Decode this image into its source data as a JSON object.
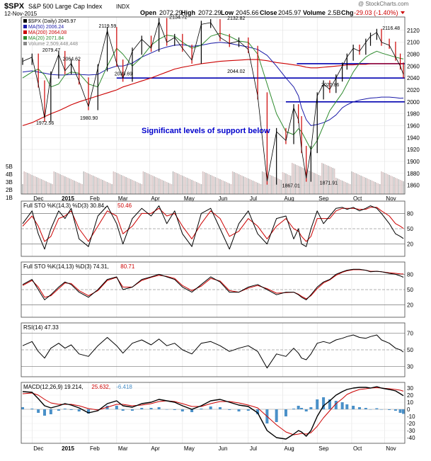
{
  "header": {
    "symbol": "$SPX",
    "name": "S&P 500 Large Cap Index",
    "exchange": "INDX",
    "date": "12-Nov-2015",
    "open_label": "Open",
    "open": "2072.29",
    "high_label": "High",
    "high": "2072.29",
    "low_label": "Low",
    "low": "2045.66",
    "close_label": "Close",
    "close": "2045.97",
    "volume_label": "Volume",
    "volume": "2.5B",
    "chg_label": "Chg",
    "chg": "-29.03 (-1.40%)",
    "watermark": "@ StockCharts.com"
  },
  "colors": {
    "price_up": "#000000",
    "price_down": "#cc0000",
    "ma50": "#1a1aa8",
    "ma200": "#cc0000",
    "ma20": "#2e8b2e",
    "volume_bar": "#d9c6c6",
    "support_line": "#0000b0",
    "annotation": "#0000cc",
    "osc_k": "#000000",
    "osc_d": "#cc0000",
    "macd_hist": "#4a90c8"
  },
  "chart_data": [
    {
      "type": "line",
      "title": "$SPX (Daily) 2045.97",
      "legend": [
        {
          "name": "$SPX (Daily) 2045.97",
          "color": "#000000"
        },
        {
          "name": "MA(50) 2006.24",
          "color": "#1a1aa8"
        },
        {
          "name": "MA(200) 2064.08",
          "color": "#cc0000"
        },
        {
          "name": "MA(20) 2071.84",
          "color": "#2e8b2e"
        },
        {
          "name": "Volume 2,509,448,448",
          "color": "#888888"
        }
      ],
      "x_tick_labels": [
        "Dec",
        "2015",
        "Feb",
        "Mar",
        "Apr",
        "May",
        "Jun",
        "Jul",
        "Aug",
        "Sep",
        "Oct",
        "Nov"
      ],
      "y_ticks": [
        1860,
        1880,
        1900,
        1920,
        1940,
        1960,
        1980,
        2000,
        2020,
        2040,
        2060,
        2080,
        2100,
        2120
      ],
      "ylim": [
        1850,
        2140
      ],
      "volume_ticks": [
        "5B",
        "4B",
        "3B",
        "2B",
        "1B"
      ],
      "annotation": "Significant levels of support below",
      "support_levels": [
        2064,
        2040,
        2000
      ],
      "x": [
        0,
        6,
        10,
        14,
        18,
        23,
        27,
        31,
        36,
        42,
        48,
        54,
        60,
        64,
        70,
        76,
        82,
        87,
        92,
        97,
        102,
        108,
        114,
        120,
        126,
        132,
        138,
        144,
        150,
        156,
        162,
        168,
        173,
        176,
        178,
        181,
        184,
        188,
        192,
        196,
        200,
        204,
        207,
        211,
        215,
        219,
        222,
        226,
        229,
        234,
        238,
        241,
        243
      ],
      "close": [
        2068,
        2075,
        2030,
        1972.56,
        2045,
        2079.47,
        2052,
        2064.62,
        2035,
        1992,
        2057,
        2119.59,
        2065,
        2039.69,
        2085,
        2105,
        2090,
        2134.72,
        2100,
        2108,
        2090,
        2070,
        2130,
        2132.82,
        2108,
        2098,
        2102,
        2088,
        2010,
        1867.01,
        1950,
        1935,
        1990,
        1970,
        1920,
        1871.91,
        1920,
        2010,
        2030,
        2020.86,
        2040,
        2060,
        2075,
        2090,
        2085,
        2100,
        2110,
        2116.48,
        2100,
        2095,
        2075,
        2060,
        2045.97
      ],
      "ma50": [
        2050,
        2052,
        2050,
        2048,
        2046,
        2045,
        2045,
        2046,
        2046,
        2045,
        2046,
        2055,
        2060,
        2060,
        2065,
        2075,
        2082,
        2088,
        2092,
        2095,
        2096,
        2093,
        2095,
        2098,
        2100,
        2098,
        2095,
        2092,
        2088,
        2078,
        2060,
        2040,
        2025,
        2010,
        1990,
        1970,
        1960,
        1962,
        1965,
        1970,
        1978,
        1990,
        1995,
        2000,
        2003,
        2005,
        2006.24,
        2007,
        2008,
        2008,
        2007,
        2006,
        2006.24
      ],
      "ma200": [
        1960,
        1965,
        1970,
        1975,
        1980,
        1985,
        1990,
        1995,
        2000,
        2005,
        2010,
        2015,
        2020,
        2025,
        2030,
        2035,
        2040,
        2045,
        2050,
        2055,
        2058,
        2061,
        2064,
        2066,
        2068,
        2069,
        2070,
        2071,
        2071,
        2069,
        2066,
        2064,
        2062,
        2061,
        2060,
        2058,
        2057,
        2057,
        2058,
        2059,
        2060,
        2061,
        2062,
        2062,
        2063,
        2063,
        2064,
        2064,
        2064,
        2064,
        2064,
        2064,
        2064.08
      ],
      "ma20": [
        2040,
        2050,
        2055,
        2045,
        2025,
        2030,
        2045,
        2050,
        2048,
        2030,
        2025,
        2060,
        2090,
        2080,
        2060,
        2075,
        2095,
        2105,
        2112,
        2110,
        2100,
        2090,
        2095,
        2110,
        2115,
        2110,
        2102,
        2100,
        2080,
        2030,
        1980,
        1950,
        1945,
        1955,
        1950,
        1935,
        1920,
        1935,
        1960,
        1985,
        2000,
        2015,
        2030,
        2050,
        2065,
        2075,
        2080,
        2085,
        2082,
        2078,
        2075,
        2073,
        2071.84
      ],
      "point_labels": [
        {
          "x": 18,
          "y": 2079.47,
          "text": "2079.47"
        },
        {
          "x": 31,
          "y": 2064.62,
          "text": "2064.62"
        },
        {
          "x": 14,
          "y": 1972.56,
          "text": "1972.56"
        },
        {
          "x": 42,
          "y": 1980.9,
          "text": "1980.90"
        },
        {
          "x": 54,
          "y": 2119.59,
          "text": "2119.59"
        },
        {
          "x": 64,
          "y": 2039.69,
          "text": "2039.69"
        },
        {
          "x": 99,
          "y": 2134.72,
          "text": "2134.72"
        },
        {
          "x": 136,
          "y": 2132.82,
          "text": "2132.82"
        },
        {
          "x": 136,
          "y": 2044.02,
          "text": "2044.02"
        },
        {
          "x": 196,
          "y": 2020.86,
          "text": "2020.86"
        },
        {
          "x": 171,
          "y": 1867.01,
          "text": "1867.01"
        },
        {
          "x": 195,
          "y": 1871.91,
          "text": "1871.91"
        },
        {
          "x": 235,
          "y": 2116.48,
          "text": "2116.48"
        }
      ]
    },
    {
      "type": "line",
      "title": "Full STO %K(14,3) %D(3) 30.84, 50.46",
      "title_k": "Full STO %K(14,3) %D(3) 30.84,",
      "title_d": "50.46",
      "y_ticks": [
        20,
        50,
        80
      ],
      "ylim": [
        0,
        100
      ],
      "k": [
        60,
        85,
        40,
        10,
        50,
        85,
        70,
        90,
        30,
        15,
        75,
        95,
        60,
        20,
        70,
        90,
        75,
        95,
        60,
        85,
        40,
        15,
        80,
        90,
        50,
        10,
        60,
        85,
        40,
        20,
        70,
        75,
        30,
        50,
        20,
        15,
        50,
        85,
        60,
        75,
        90,
        92,
        88,
        92,
        85,
        90,
        95,
        90,
        80,
        60,
        40,
        35,
        30.84
      ],
      "d": [
        55,
        75,
        55,
        25,
        35,
        70,
        75,
        85,
        50,
        25,
        55,
        85,
        75,
        40,
        55,
        80,
        80,
        90,
        75,
        80,
        55,
        30,
        60,
        85,
        70,
        35,
        45,
        70,
        55,
        30,
        55,
        70,
        50,
        45,
        35,
        25,
        35,
        70,
        70,
        70,
        85,
        90,
        90,
        90,
        88,
        88,
        92,
        92,
        85,
        75,
        60,
        55,
        50.46
      ]
    },
    {
      "type": "line",
      "title": "Full STO %K(14,13) %D(3) 74.31, 80.71",
      "title_k": "Full STO %K(14,13) %D(3) 74.31,",
      "title_d": "80.71",
      "y_ticks": [
        20,
        50,
        80
      ],
      "ylim": [
        0,
        100
      ],
      "k": [
        60,
        70,
        50,
        30,
        40,
        55,
        65,
        60,
        45,
        35,
        50,
        70,
        75,
        50,
        55,
        70,
        75,
        80,
        75,
        70,
        55,
        45,
        60,
        75,
        65,
        45,
        45,
        55,
        60,
        50,
        40,
        45,
        45,
        40,
        35,
        30,
        40,
        55,
        65,
        70,
        80,
        85,
        88,
        90,
        90,
        88,
        85,
        86,
        85,
        82,
        80,
        77,
        74.31
      ],
      "d": [
        58,
        68,
        55,
        35,
        38,
        52,
        63,
        62,
        48,
        38,
        48,
        68,
        74,
        55,
        55,
        68,
        74,
        78,
        76,
        72,
        58,
        48,
        57,
        72,
        67,
        48,
        45,
        53,
        58,
        52,
        43,
        44,
        45,
        41,
        37,
        32,
        38,
        52,
        63,
        69,
        78,
        84,
        87,
        89,
        89,
        88,
        86,
        86,
        85,
        83,
        82,
        81,
        80.71
      ]
    },
    {
      "type": "line",
      "title": "RSI(14) 47.33",
      "y_ticks": [
        30,
        50,
        70
      ],
      "ylim": [
        20,
        80
      ],
      "values": [
        55,
        60,
        48,
        40,
        52,
        58,
        52,
        56,
        45,
        42,
        55,
        65,
        55,
        46,
        58,
        62,
        56,
        63,
        55,
        58,
        50,
        45,
        58,
        60,
        55,
        48,
        52,
        55,
        48,
        28,
        45,
        42,
        52,
        46,
        40,
        38,
        45,
        58,
        60,
        58,
        62,
        64,
        66,
        68,
        65,
        64,
        66,
        68,
        62,
        58,
        52,
        50,
        47.33
      ]
    },
    {
      "type": "line",
      "title": "MACD(12,26,9) 19.214, 25.632, -6.418",
      "title_macd": "MACD(12,26,9) 19.214,",
      "title_signal": "25.632,",
      "title_hist": "-6.418",
      "y_ticks": [
        -40,
        -30,
        -20,
        -10,
        0,
        10,
        20,
        30
      ],
      "ylim": [
        -45,
        35
      ],
      "x_tick_labels": [
        "Dec",
        "2015",
        "Feb",
        "Mar",
        "Apr",
        "May",
        "Jun",
        "Jul",
        "Aug",
        "Sep",
        "Oct",
        "Nov"
      ],
      "macd": [
        25,
        24,
        15,
        5,
        2,
        5,
        8,
        6,
        2,
        -5,
        -2,
        8,
        12,
        5,
        3,
        8,
        10,
        14,
        12,
        10,
        5,
        0,
        5,
        12,
        14,
        10,
        6,
        4,
        -5,
        -30,
        -40,
        -42,
        -35,
        -30,
        -32,
        -38,
        -30,
        -10,
        5,
        12,
        20,
        25,
        28,
        30,
        31,
        31,
        30,
        32,
        30,
        28,
        26,
        22,
        19.214
      ],
      "signal": [
        22,
        23,
        20,
        14,
        9,
        7,
        7,
        7,
        5,
        1,
        -1,
        3,
        7,
        7,
        5,
        6,
        8,
        11,
        12,
        11,
        8,
        4,
        4,
        8,
        11,
        11,
        9,
        6,
        2,
        -10,
        -22,
        -32,
        -36,
        -35,
        -34,
        -35,
        -33,
        -24,
        -12,
        -2,
        8,
        15,
        21,
        25,
        28,
        29,
        30,
        30.5,
        30,
        29,
        28,
        27,
        25.632
      ]
    }
  ]
}
